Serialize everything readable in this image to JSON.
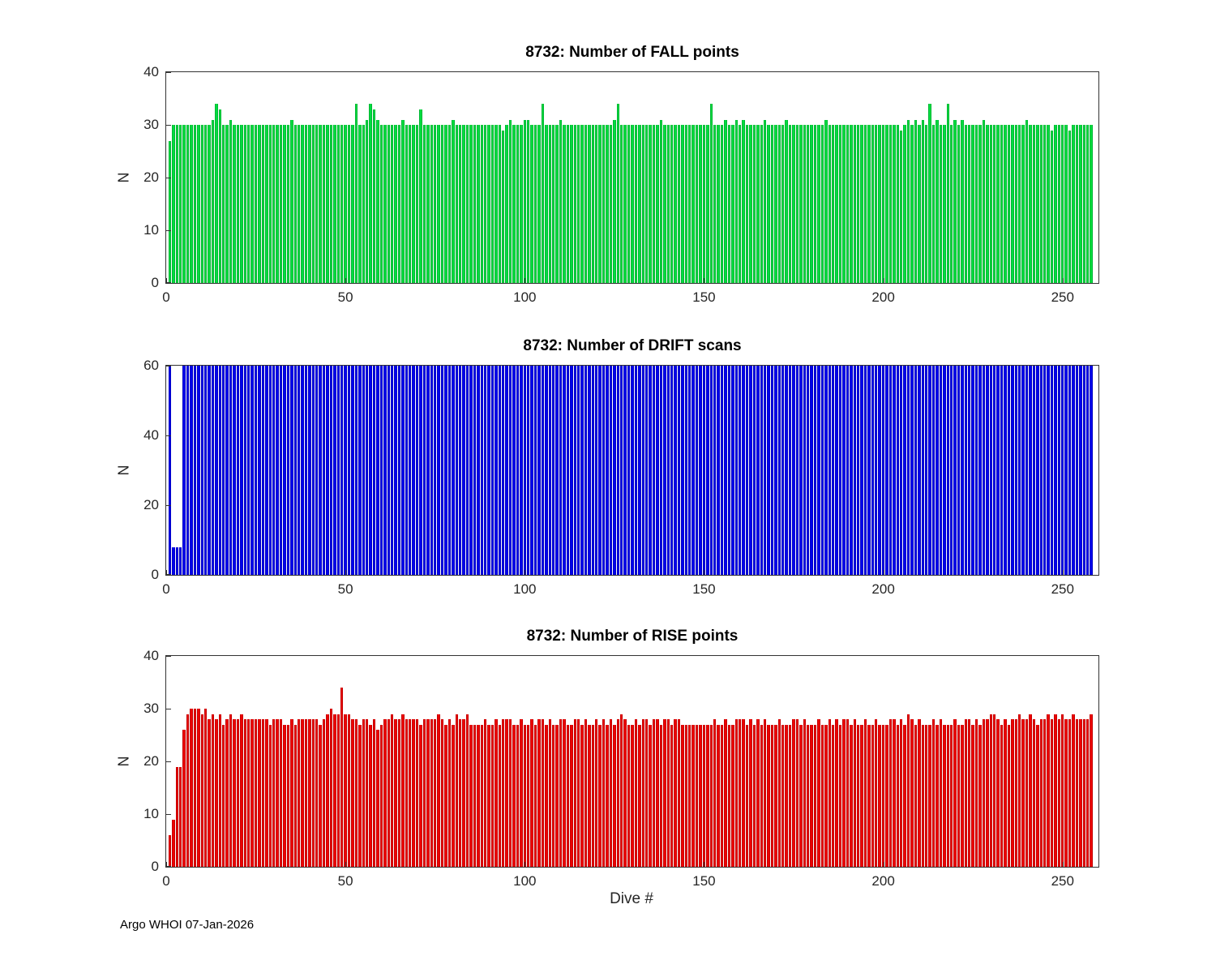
{
  "figure": {
    "xlabel": "Dive #",
    "footer": "Argo WHOI 07-Jan-2026"
  },
  "chart_data": [
    {
      "type": "bar",
      "title": "8732: Number of FALL points",
      "ylabel": "N",
      "color": "#00dd3f",
      "xlim": [
        0,
        260
      ],
      "ylim": [
        0,
        40
      ],
      "xticks": [
        0,
        50,
        100,
        150,
        200,
        250
      ],
      "yticks": [
        0,
        10,
        20,
        30,
        40
      ],
      "x_start": 1,
      "values": [
        27,
        30,
        30,
        30,
        30,
        30,
        30,
        30,
        30,
        30,
        30,
        30,
        31,
        34,
        33,
        30,
        30,
        31,
        30,
        30,
        30,
        30,
        30,
        30,
        30,
        30,
        30,
        30,
        30,
        30,
        30,
        30,
        30,
        30,
        31,
        30,
        30,
        30,
        30,
        30,
        30,
        30,
        30,
        30,
        30,
        30,
        30,
        30,
        30,
        30,
        30,
        30,
        34,
        30,
        30,
        31,
        34,
        33,
        31,
        30,
        30,
        30,
        30,
        30,
        30,
        31,
        30,
        30,
        30,
        30,
        33,
        30,
        30,
        30,
        30,
        30,
        30,
        30,
        30,
        31,
        30,
        30,
        30,
        30,
        30,
        30,
        30,
        30,
        30,
        30,
        30,
        30,
        30,
        29,
        30,
        31,
        30,
        30,
        30,
        31,
        31,
        30,
        30,
        30,
        34,
        30,
        30,
        30,
        30,
        31,
        30,
        30,
        30,
        30,
        30,
        30,
        30,
        30,
        30,
        30,
        30,
        30,
        30,
        30,
        31,
        34,
        30,
        30,
        30,
        30,
        30,
        30,
        30,
        30,
        30,
        30,
        30,
        31,
        30,
        30,
        30,
        30,
        30,
        30,
        30,
        30,
        30,
        30,
        30,
        30,
        30,
        34,
        30,
        30,
        30,
        31,
        30,
        30,
        31,
        30,
        31,
        30,
        30,
        30,
        30,
        30,
        31,
        30,
        30,
        30,
        30,
        30,
        31,
        30,
        30,
        30,
        30,
        30,
        30,
        30,
        30,
        30,
        30,
        31,
        30,
        30,
        30,
        30,
        30,
        30,
        30,
        30,
        30,
        30,
        30,
        30,
        30,
        30,
        30,
        30,
        30,
        30,
        30,
        30,
        29,
        30,
        31,
        30,
        31,
        30,
        31,
        30,
        34,
        30,
        31,
        30,
        30,
        34,
        30,
        31,
        30,
        31,
        30,
        30,
        30,
        30,
        30,
        31,
        30,
        30,
        30,
        30,
        30,
        30,
        30,
        30,
        30,
        30,
        30,
        31,
        30,
        30,
        30,
        30,
        30,
        30,
        29,
        30,
        30,
        30,
        30,
        29,
        30,
        30,
        30,
        30,
        30,
        30
      ]
    },
    {
      "type": "bar",
      "title": "8732: Number of DRIFT scans",
      "ylabel": "N",
      "color": "#0000ee",
      "xlim": [
        0,
        260
      ],
      "ylim": [
        0,
        60
      ],
      "xticks": [
        0,
        50,
        100,
        150,
        200,
        250
      ],
      "yticks": [
        0,
        20,
        40,
        60
      ],
      "x_start": 1,
      "values": [
        60,
        8,
        8,
        8,
        60,
        60,
        60,
        60,
        60,
        60,
        60,
        60,
        60,
        60,
        60,
        60,
        60,
        60,
        60,
        60,
        60,
        60,
        60,
        60,
        60,
        60,
        60,
        60,
        60,
        60,
        60,
        60,
        60,
        60,
        60,
        60,
        60,
        60,
        60,
        60,
        60,
        60,
        60,
        60,
        60,
        60,
        60,
        60,
        60,
        60,
        60,
        60,
        60,
        60,
        60,
        60,
        60,
        60,
        60,
        60,
        60,
        60,
        60,
        60,
        60,
        60,
        60,
        60,
        60,
        60,
        60,
        60,
        60,
        60,
        60,
        60,
        60,
        60,
        60,
        60,
        60,
        60,
        60,
        60,
        60,
        60,
        60,
        60,
        60,
        60,
        60,
        60,
        60,
        60,
        60,
        60,
        60,
        60,
        60,
        60,
        60,
        60,
        60,
        60,
        60,
        60,
        60,
        60,
        60,
        60,
        60,
        60,
        60,
        60,
        60,
        60,
        60,
        60,
        60,
        60,
        60,
        60,
        60,
        60,
        60,
        60,
        60,
        60,
        60,
        60,
        60,
        60,
        60,
        60,
        60,
        60,
        60,
        60,
        60,
        60,
        60,
        60,
        60,
        60,
        60,
        60,
        60,
        60,
        60,
        60,
        60,
        60,
        60,
        60,
        60,
        60,
        60,
        60,
        60,
        60,
        60,
        60,
        60,
        60,
        60,
        60,
        60,
        60,
        60,
        60,
        60,
        60,
        60,
        60,
        60,
        60,
        60,
        60,
        60,
        60,
        60,
        60,
        60,
        60,
        60,
        60,
        60,
        60,
        60,
        60,
        60,
        60,
        60,
        60,
        60,
        60,
        60,
        60,
        60,
        60,
        60,
        60,
        60,
        60,
        60,
        60,
        60,
        60,
        60,
        60,
        60,
        60,
        60,
        60,
        60,
        60,
        60,
        60,
        60,
        60,
        60,
        60,
        60,
        60,
        60,
        60,
        60,
        60,
        60,
        60,
        60,
        60,
        60,
        60,
        60,
        60,
        60,
        60,
        60,
        60,
        60,
        60,
        60,
        60,
        60,
        60,
        60,
        60,
        60,
        60,
        60,
        60,
        60,
        60,
        60,
        60,
        60,
        60
      ]
    },
    {
      "type": "bar",
      "title": "8732: Number of RISE points",
      "ylabel": "N",
      "color": "#ee0000",
      "xlim": [
        0,
        260
      ],
      "ylim": [
        0,
        40
      ],
      "xticks": [
        0,
        50,
        100,
        150,
        200,
        250
      ],
      "yticks": [
        0,
        10,
        20,
        30,
        40
      ],
      "x_start": 1,
      "values": [
        6,
        9,
        19,
        19,
        26,
        29,
        30,
        30,
        30,
        29,
        30,
        28,
        29,
        28,
        29,
        27,
        28,
        29,
        28,
        28,
        29,
        28,
        28,
        28,
        28,
        28,
        28,
        28,
        27,
        28,
        28,
        28,
        27,
        27,
        28,
        27,
        28,
        28,
        28,
        28,
        28,
        28,
        27,
        28,
        29,
        30,
        29,
        29,
        34,
        29,
        29,
        28,
        28,
        27,
        28,
        28,
        27,
        28,
        26,
        27,
        28,
        28,
        29,
        28,
        28,
        29,
        28,
        28,
        28,
        28,
        27,
        28,
        28,
        28,
        28,
        29,
        28,
        27,
        28,
        27,
        29,
        28,
        28,
        29,
        27,
        27,
        27,
        27,
        28,
        27,
        27,
        28,
        27,
        28,
        28,
        28,
        27,
        27,
        28,
        27,
        27,
        28,
        27,
        28,
        28,
        27,
        28,
        27,
        27,
        28,
        28,
        27,
        27,
        28,
        28,
        27,
        28,
        27,
        27,
        28,
        27,
        28,
        27,
        28,
        27,
        28,
        29,
        28,
        27,
        27,
        28,
        27,
        28,
        28,
        27,
        28,
        28,
        27,
        28,
        28,
        27,
        28,
        28,
        27,
        27,
        27,
        27,
        27,
        27,
        27,
        27,
        27,
        28,
        27,
        27,
        28,
        27,
        27,
        28,
        28,
        28,
        27,
        28,
        27,
        28,
        27,
        28,
        27,
        27,
        27,
        28,
        27,
        27,
        27,
        28,
        28,
        27,
        28,
        27,
        27,
        27,
        28,
        27,
        27,
        28,
        27,
        28,
        27,
        28,
        28,
        27,
        28,
        27,
        27,
        28,
        27,
        27,
        28,
        27,
        27,
        27,
        28,
        28,
        27,
        28,
        27,
        29,
        28,
        27,
        28,
        27,
        27,
        27,
        28,
        27,
        28,
        27,
        27,
        27,
        28,
        27,
        27,
        28,
        28,
        27,
        28,
        27,
        28,
        28,
        29,
        29,
        28,
        27,
        28,
        27,
        28,
        28,
        29,
        28,
        28,
        29,
        28,
        27,
        28,
        28,
        29,
        28,
        29,
        28,
        29,
        28,
        28,
        29,
        28,
        28,
        28,
        28,
        29
      ]
    }
  ]
}
